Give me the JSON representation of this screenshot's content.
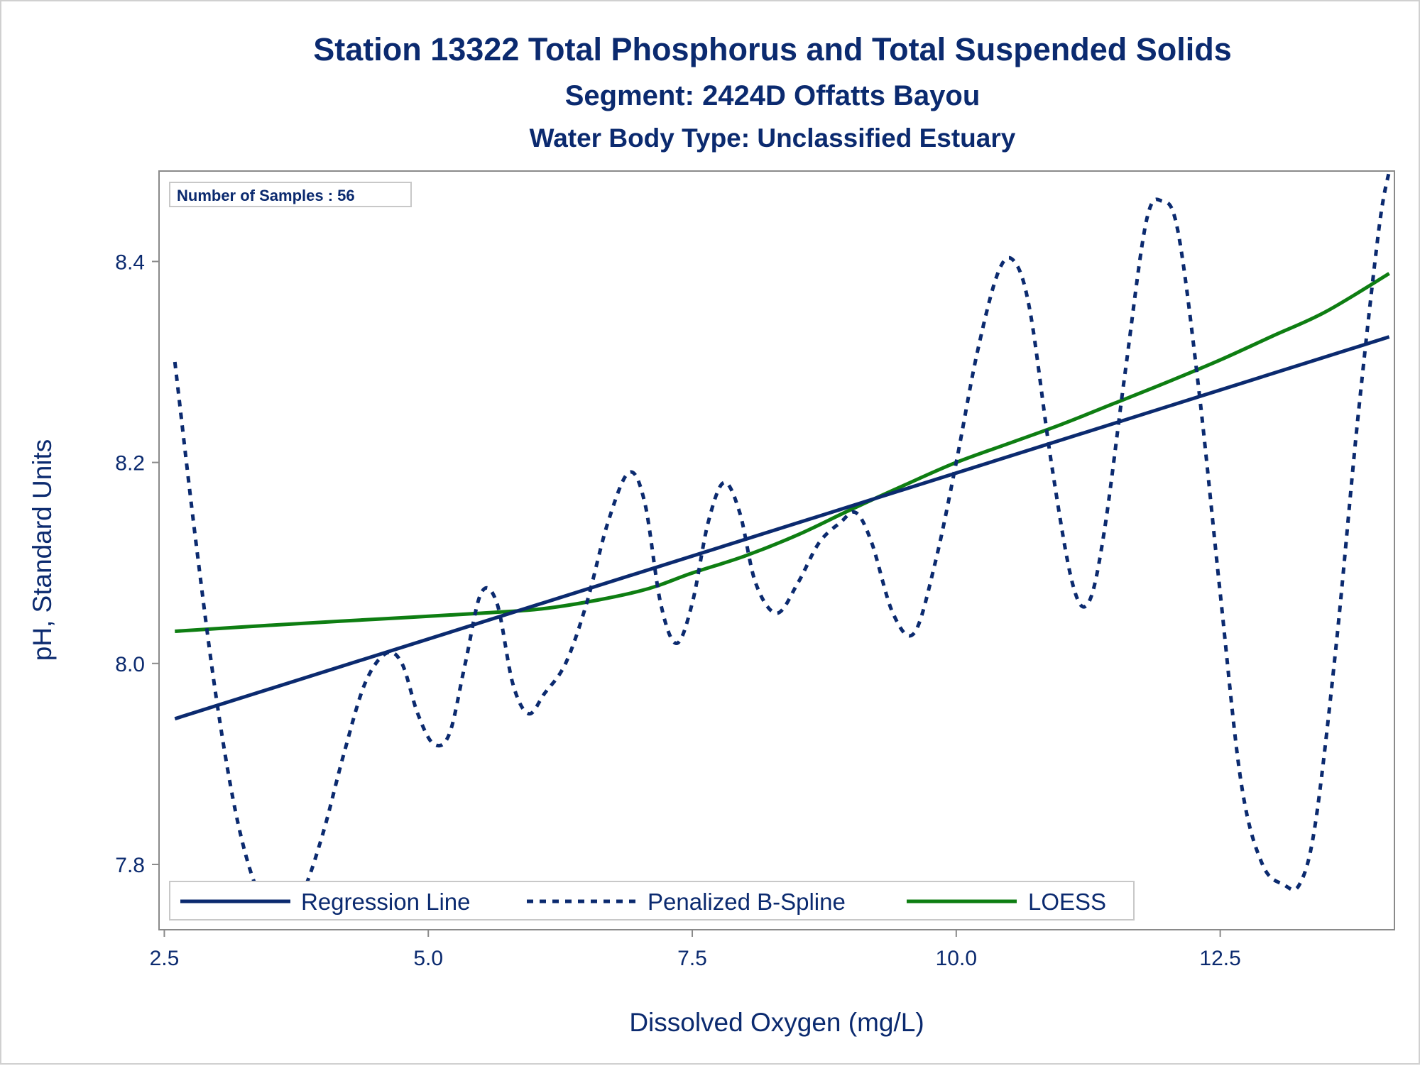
{
  "chart_data": {
    "type": "line",
    "title": "Station 13322  Total Phosphorus and Total Suspended Solids",
    "subtitle": "Segment: 2424D  Offatts Bayou",
    "subtitle2": "Water Body Type: Unclassified Estuary",
    "xlabel": "Dissolved Oxygen (mg/L)",
    "ylabel": "pH, Standard Units",
    "xlim": [
      2.45,
      14.15
    ],
    "ylim": [
      7.735,
      8.49
    ],
    "x_ticks": [
      2.5,
      5.0,
      7.5,
      10.0,
      12.5
    ],
    "x_tick_labels": [
      "2.5",
      "5.0",
      "7.5",
      "10.0",
      "12.5"
    ],
    "y_ticks": [
      7.8,
      8.0,
      8.2,
      8.4
    ],
    "y_tick_labels": [
      "7.8",
      "8.0",
      "8.2",
      "8.4"
    ],
    "grid": false,
    "legend_position": "bottom-inside",
    "annotation": "Number of Samples : 56",
    "series": [
      {
        "name": "Regression Line",
        "style": "solid",
        "color": "#0b2a6f",
        "x": [
          2.6,
          14.1
        ],
        "y": [
          7.945,
          8.325
        ]
      },
      {
        "name": "Penalized B-Spline",
        "style": "dashed",
        "color": "#0b2a6f",
        "x": [
          2.6,
          2.8,
          3.0,
          3.2,
          3.4,
          3.6,
          3.8,
          4.0,
          4.2,
          4.4,
          4.6,
          4.75,
          4.9,
          5.05,
          5.2,
          5.35,
          5.5,
          5.65,
          5.8,
          5.95,
          6.1,
          6.3,
          6.5,
          6.7,
          6.9,
          7.05,
          7.2,
          7.35,
          7.5,
          7.65,
          7.8,
          7.95,
          8.1,
          8.3,
          8.5,
          8.7,
          8.9,
          9.05,
          9.2,
          9.4,
          9.6,
          9.8,
          10.0,
          10.2,
          10.4,
          10.55,
          10.7,
          10.9,
          11.1,
          11.25,
          11.4,
          11.6,
          11.8,
          11.95,
          12.1,
          12.3,
          12.5,
          12.7,
          12.9,
          13.1,
          13.25,
          13.4,
          13.6,
          13.8,
          14.0,
          14.1
        ],
        "y": [
          8.3,
          8.12,
          7.96,
          7.84,
          7.77,
          7.75,
          7.77,
          7.83,
          7.91,
          7.98,
          8.01,
          8.0,
          7.95,
          7.92,
          7.93,
          8.0,
          8.07,
          8.06,
          7.98,
          7.95,
          7.97,
          8.0,
          8.06,
          8.14,
          8.19,
          8.16,
          8.06,
          8.02,
          8.06,
          8.14,
          8.18,
          8.15,
          8.08,
          8.05,
          8.08,
          8.12,
          8.14,
          8.15,
          8.12,
          8.05,
          8.03,
          8.1,
          8.2,
          8.31,
          8.39,
          8.4,
          8.35,
          8.2,
          8.08,
          8.06,
          8.13,
          8.29,
          8.44,
          8.46,
          8.43,
          8.27,
          8.07,
          7.88,
          7.8,
          7.78,
          7.78,
          7.84,
          8.02,
          8.24,
          8.43,
          8.49
        ]
      },
      {
        "name": "LOESS",
        "style": "solid",
        "color": "#0e7e12",
        "x": [
          2.6,
          3.5,
          4.5,
          5.5,
          6.2,
          7.0,
          7.5,
          8.0,
          8.5,
          9.0,
          9.5,
          10.0,
          10.5,
          11.0,
          11.5,
          12.0,
          12.5,
          13.0,
          13.5,
          14.1
        ],
        "y": [
          8.032,
          8.038,
          8.044,
          8.05,
          8.056,
          8.072,
          8.09,
          8.107,
          8.128,
          8.153,
          8.177,
          8.2,
          8.219,
          8.238,
          8.259,
          8.28,
          8.302,
          8.326,
          8.35,
          8.388
        ]
      }
    ]
  }
}
